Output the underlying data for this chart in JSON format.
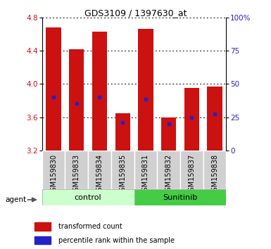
{
  "title": "GDS3109 / 1397630_at",
  "samples": [
    "GSM159830",
    "GSM159833",
    "GSM159834",
    "GSM159835",
    "GSM159831",
    "GSM159832",
    "GSM159837",
    "GSM159838"
  ],
  "groups": [
    "control",
    "control",
    "control",
    "control",
    "Sunitinib",
    "Sunitinib",
    "Sunitinib",
    "Sunitinib"
  ],
  "bar_tops": [
    4.68,
    4.42,
    4.63,
    3.65,
    4.66,
    3.6,
    3.95,
    3.97
  ],
  "bar_bottoms": [
    3.2,
    3.2,
    3.2,
    3.2,
    3.2,
    3.2,
    3.2,
    3.2
  ],
  "blue_markers": [
    3.84,
    3.77,
    3.84,
    3.54,
    3.82,
    3.52,
    3.6,
    3.64
  ],
  "ylim_left": [
    3.2,
    4.8
  ],
  "yticks_left": [
    3.2,
    3.6,
    4.0,
    4.4,
    4.8
  ],
  "yticks_right_pct": [
    0,
    25,
    50,
    75,
    100
  ],
  "yticks_right_labels": [
    "0",
    "25",
    "50",
    "75",
    "100%"
  ],
  "bar_color": "#cc1111",
  "blue_color": "#2222cc",
  "bar_width": 0.65,
  "control_color_light": "#ccffcc",
  "sunitinib_color_bright": "#44cc44",
  "control_label": "control",
  "sunitinib_label": "Sunitinib",
  "agent_label": "agent",
  "legend1_label": "transformed count",
  "legend2_label": "percentile rank within the sample",
  "ylabel_left_color": "#cc1111",
  "ylabel_right_color": "#2222cc",
  "bg_color": "#ffffff",
  "sample_box_color": "#d0d0d0",
  "title_fontsize": 9,
  "tick_fontsize": 7.5,
  "label_fontsize": 7,
  "group_fontsize": 8
}
